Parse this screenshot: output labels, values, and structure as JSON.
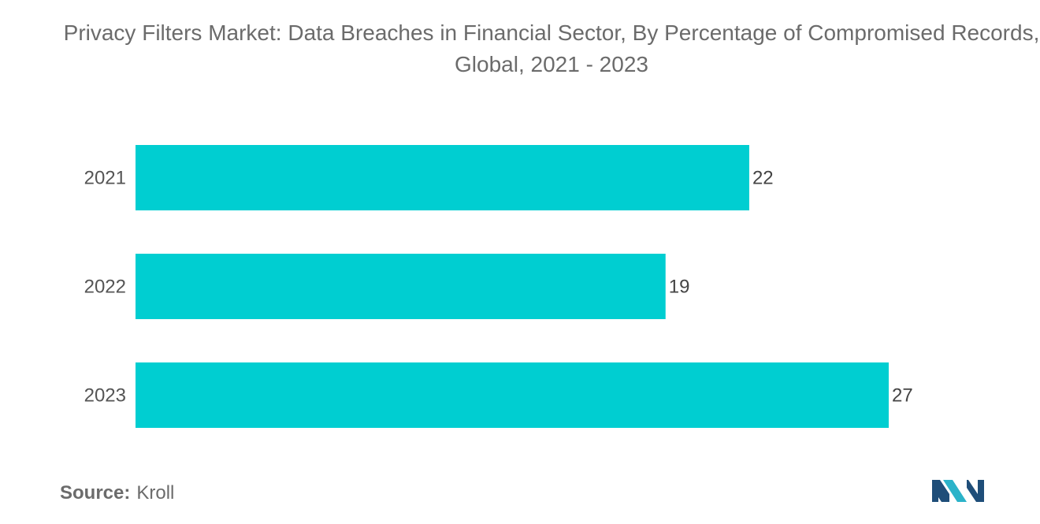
{
  "chart_data": {
    "type": "bar",
    "orientation": "horizontal",
    "title": "Privacy Filters Market: Data Breaches in Financial Sector, By Percentage of Compromised Records, Global, 2021 - 2023",
    "categories": [
      "2021",
      "2022",
      "2023"
    ],
    "values": [
      22,
      19,
      27
    ],
    "xlim": [
      0,
      27
    ],
    "grid": false,
    "data_labels": true,
    "bar_color": "#00ced1"
  },
  "source": {
    "prefix": "Source:",
    "text": "Kroll"
  },
  "colors": {
    "bar": "#00ced1",
    "logo_dark": "#1f4e79",
    "logo_light": "#2bb3c9"
  },
  "logo": {
    "icon": "mordor-intelligence-logo-icon"
  }
}
